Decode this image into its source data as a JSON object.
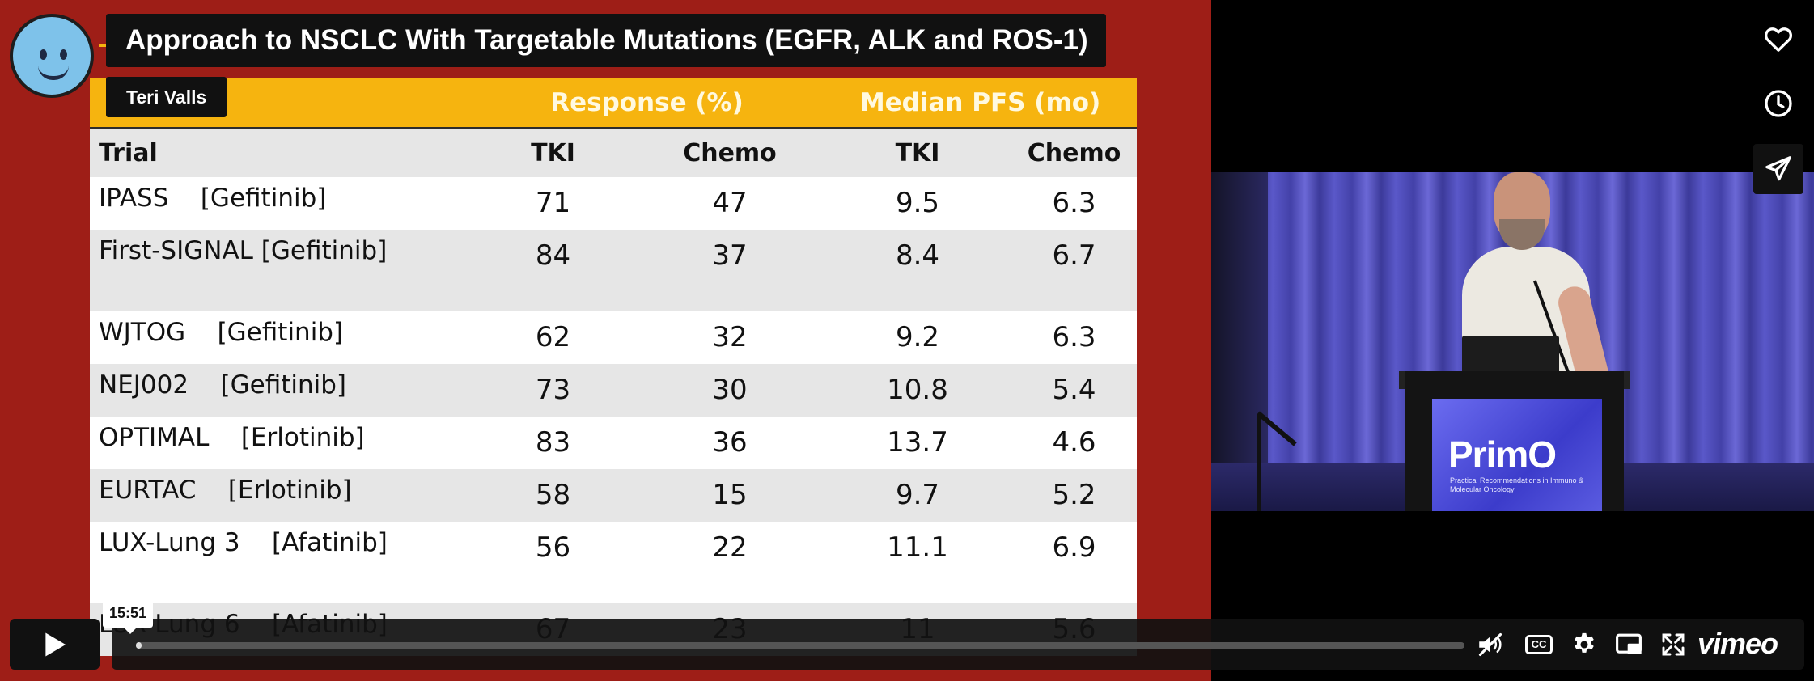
{
  "video": {
    "title": "Approach to NSCLC With Targetable Mutations (EGFR, ALK and ROS-1)",
    "author": "Teri Valls",
    "hover_time": "15:51",
    "progress_fraction": 0.004
  },
  "slide": {
    "group_headers": [
      "",
      "Response (%)",
      "Median PFS (mo)"
    ],
    "columns": [
      "Trial",
      "TKI",
      "Chemo",
      "TKI",
      "Chemo"
    ],
    "rows": [
      [
        "IPASS    [Gefitinib]",
        "71",
        "47",
        "9.5",
        "6.3"
      ],
      [
        "First-SIGNAL [Gefitinib]",
        "84",
        "37",
        "8.4",
        "6.7"
      ],
      [
        "WJTOG    [Gefitinib]",
        "62",
        "32",
        "9.2",
        "6.3"
      ],
      [
        "NEJ002    [Gefitinib]",
        "73",
        "30",
        "10.8",
        "5.4"
      ],
      [
        "OPTIMAL    [Erlotinib]",
        "83",
        "36",
        "13.7",
        "4.6"
      ],
      [
        "EURTAC    [Erlotinib]",
        "58",
        "15",
        "9.7",
        "5.2"
      ],
      [
        "LUX-Lung 3    [Afatinib]",
        "56",
        "22",
        "11.1",
        "6.9"
      ],
      [
        "LUX-Lung 6    [Afatinib]",
        "67",
        "23",
        "11",
        "5.6"
      ]
    ]
  },
  "podium": {
    "logo": "PrimO",
    "tagline": "Practical Recommendations in Immuno & Molecular Oncology"
  },
  "controls": {
    "cc_label": "CC",
    "brand": "vimeo"
  },
  "icons": {
    "like": "heart-icon",
    "watch_later": "clock-icon",
    "share": "paper-plane-icon",
    "play": "play-icon",
    "volume": "volume-muted-icon",
    "settings": "gear-icon",
    "pip": "picture-in-picture-icon",
    "fullscreen": "fullscreen-icon"
  }
}
